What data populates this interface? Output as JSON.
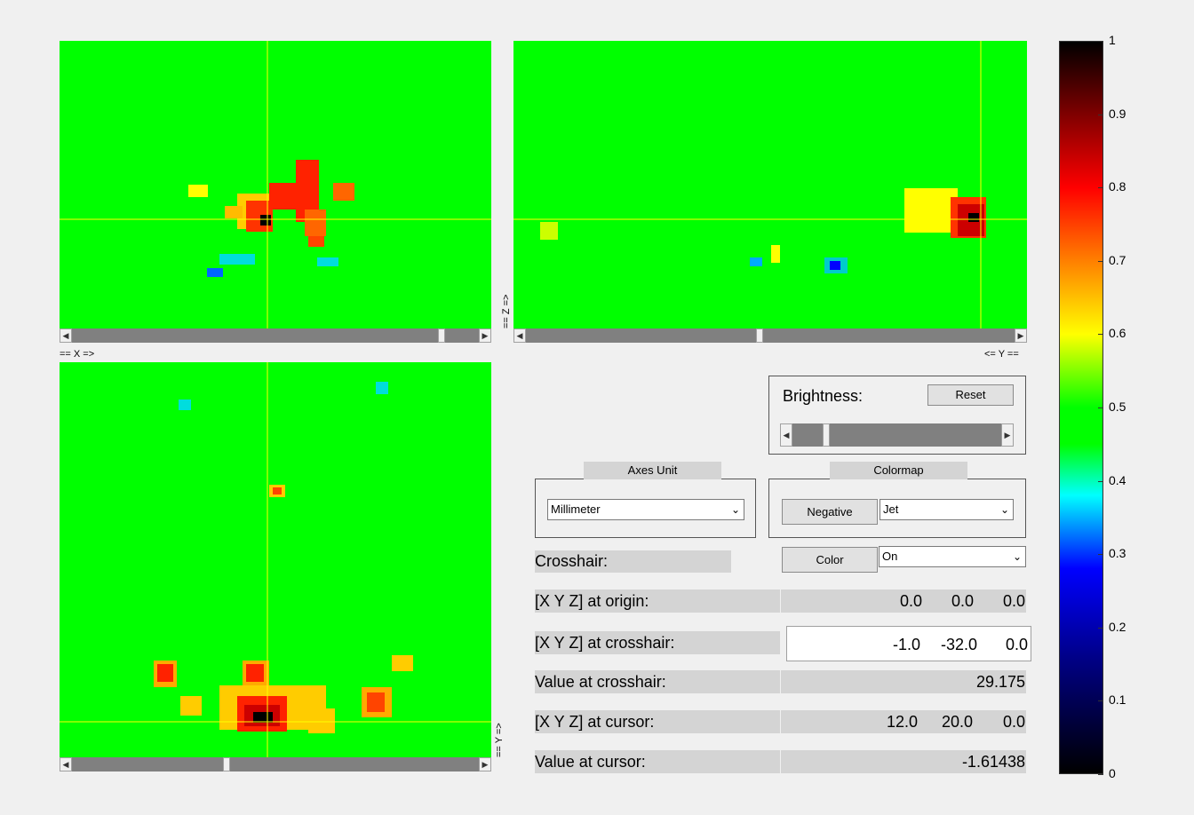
{
  "views": {
    "axial_xlabel": "== X =>",
    "sagittal_ylabel": "<= Y ==",
    "sagittal_zlabel": "== Z =>",
    "coronal_ylabel": "== Y =>",
    "scroll_arrow_left": "◀",
    "scroll_arrow_right": "▶"
  },
  "brightness": {
    "label": "Brightness:",
    "reset_label": "Reset",
    "level": 0.15
  },
  "axes_unit": {
    "tab_label": "Axes Unit",
    "selected": "Millimeter"
  },
  "colormap": {
    "tab_label": "Colormap",
    "negative_label": "Negative",
    "selected": "Jet"
  },
  "crosshair": {
    "label": "Crosshair:",
    "color_label": "Color",
    "state": "On"
  },
  "info": {
    "origin_label": "[X Y Z] at origin:",
    "origin": [
      "0.0",
      "0.0",
      "0.0"
    ],
    "crosshair_label": "[X Y Z] at crosshair:",
    "crosshair": [
      "-1.0",
      "-32.0",
      "0.0"
    ],
    "value_crosshair_label": "Value at crosshair:",
    "value_crosshair": "29.175",
    "cursor_label": "[X Y Z] at cursor:",
    "cursor": [
      "12.0",
      "20.0",
      "0.0"
    ],
    "value_cursor_label": "Value at cursor:",
    "value_cursor": "-1.61438"
  },
  "colorbar": {
    "ticks": [
      "1",
      "0.9",
      "0.8",
      "0.7",
      "0.6",
      "0.5",
      "0.4",
      "0.3",
      "0.2",
      "0.1",
      "0"
    ]
  },
  "colors": {
    "background_green": "#00ff00",
    "crosshair": "#ffff00",
    "panel_gray": "#d4d4d4"
  }
}
